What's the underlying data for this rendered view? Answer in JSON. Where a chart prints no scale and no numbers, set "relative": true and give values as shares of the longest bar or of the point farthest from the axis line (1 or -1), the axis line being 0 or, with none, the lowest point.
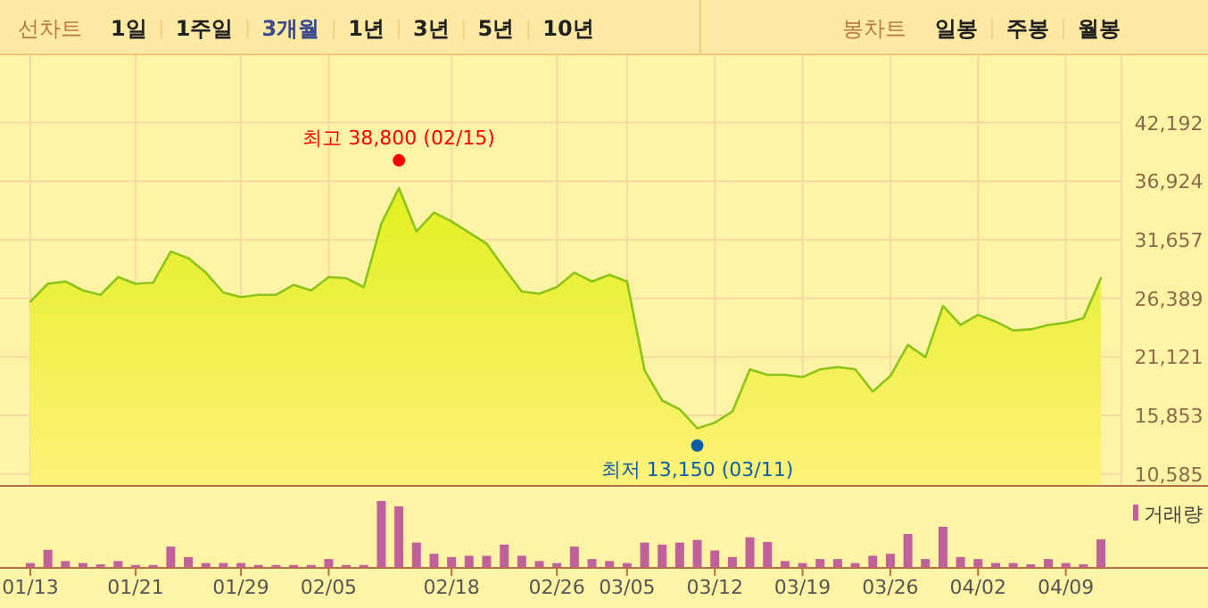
{
  "chart_data": [
    {
      "type": "other",
      "annotations": [
        "선차트",
        "1일",
        "1주일",
        "3개월",
        "1년",
        "3년",
        "5년",
        "10년",
        "봉차트",
        "일봉",
        "주봉",
        "월봉"
      ]
    },
    {
      "type": "area",
      "series": [
        {
          "type": "area",
          "color": "#8cc41a",
          "values": [
            26100,
            27700,
            27900,
            27100,
            26700,
            28300,
            27700,
            27800,
            30600,
            30000,
            28700,
            26900,
            26500,
            26700,
            26700,
            27600,
            27100,
            28300,
            28200,
            27400,
            33100,
            36300,
            32400,
            34100,
            33300,
            32300,
            31300,
            29100,
            27000,
            26800,
            27400,
            28700,
            27900,
            28500,
            27900,
            19900,
            17200,
            16400,
            14700,
            15200,
            16200,
            20000,
            19500,
            19500,
            19300,
            20000,
            20200,
            20000,
            18000,
            19400,
            22200,
            21100,
            25700,
            24000,
            24900,
            24300,
            23500,
            23600,
            24000,
            24200,
            24600,
            28200
          ]
        },
        {
          "type": "scatter",
          "marker": "circle",
          "color": "#ff0000",
          "values": [
            null,
            null,
            null,
            null,
            null,
            null,
            null,
            null,
            null,
            null,
            null,
            null,
            null,
            null,
            null,
            null,
            null,
            null,
            null,
            null,
            null,
            38800,
            null,
            null,
            null,
            null,
            null,
            null,
            null,
            null,
            null,
            null,
            null,
            null,
            null,
            null,
            null,
            null,
            null,
            null,
            null,
            null,
            null,
            null,
            null,
            null,
            null,
            null,
            null,
            null,
            null,
            null,
            null,
            null,
            null,
            null,
            null,
            null,
            null,
            null,
            null,
            null
          ]
        },
        {
          "type": "scatter",
          "marker": "circle",
          "color": "#0b5ea8",
          "values": [
            null,
            null,
            null,
            null,
            null,
            null,
            null,
            null,
            null,
            null,
            null,
            null,
            null,
            null,
            null,
            null,
            null,
            null,
            null,
            null,
            null,
            null,
            null,
            null,
            null,
            null,
            null,
            null,
            null,
            null,
            null,
            null,
            null,
            null,
            null,
            null,
            null,
            null,
            13150,
            null,
            null,
            null,
            null,
            null,
            null,
            null,
            null,
            null,
            null,
            null,
            null,
            null,
            null,
            null,
            null,
            null,
            null,
            null,
            null,
            null,
            null,
            null
          ]
        }
      ],
      "annotations": [
        {
          "text": "최고 38,800 (02/15)",
          "y": 38800
        },
        {
          "text": "최저 13,150 (03/11)",
          "y": 13150
        }
      ],
      "ylim": [
        9600,
        48250
      ],
      "yticks": [
        {
          "value": 10585,
          "label": "10,585"
        },
        {
          "value": 15853,
          "label": "15,853"
        },
        {
          "value": 21121,
          "label": "21,121"
        },
        {
          "value": 26389,
          "label": "26,389"
        },
        {
          "value": 31657,
          "label": "31,657"
        },
        {
          "value": 36924,
          "label": "36,924"
        },
        {
          "value": 42192,
          "label": "42,192"
        }
      ],
      "grid": true,
      "tick_labels": "y"
    },
    {
      "type": "bar",
      "relative": true,
      "legend": "top right",
      "tick_labels": "x",
      "categories": [
        "01/13",
        null,
        null,
        null,
        null,
        null,
        "01/21",
        null,
        null,
        null,
        null,
        null,
        "01/29",
        null,
        null,
        null,
        null,
        "02/05",
        null,
        null,
        null,
        null,
        null,
        null,
        "02/18",
        null,
        null,
        null,
        null,
        null,
        "02/26",
        null,
        null,
        null,
        "03/05",
        null,
        null,
        null,
        null,
        "03/12",
        null,
        null,
        null,
        null,
        "03/19",
        null,
        null,
        null,
        null,
        "03/26",
        null,
        null,
        null,
        null,
        "04/02",
        null,
        null,
        null,
        null,
        "04/09",
        null,
        null
      ],
      "series": [
        {
          "name": "거래량",
          "color": "#c0619b",
          "values": [
            0.06,
            0.26,
            0.09,
            0.06,
            0.04,
            0.09,
            0.03,
            0.03,
            0.31,
            0.15,
            0.06,
            0.06,
            0.06,
            0.03,
            0.03,
            0.03,
            0.03,
            0.12,
            0.03,
            0.03,
            1,
            0.92,
            0.37,
            0.2,
            0.15,
            0.17,
            0.17,
            0.34,
            0.17,
            0.09,
            0.06,
            0.31,
            0.12,
            0.09,
            0.06,
            0.37,
            0.34,
            0.37,
            0.41,
            0.25,
            0.15,
            0.45,
            0.38,
            0.09,
            0.06,
            0.12,
            0.12,
            0.06,
            0.17,
            0.2,
            0.5,
            0.12,
            0.61,
            0.15,
            0.12,
            0.06,
            0.06,
            0.04,
            0.12,
            0.06,
            0.04,
            0.42
          ]
        }
      ]
    }
  ]
}
